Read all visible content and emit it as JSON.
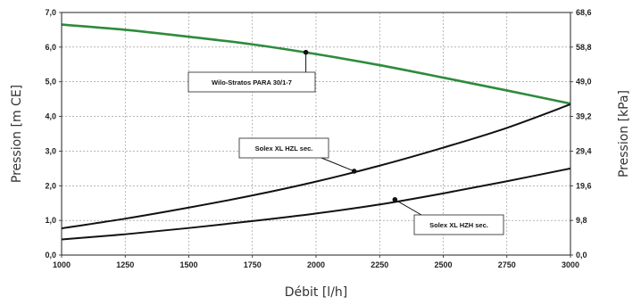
{
  "chart_data": {
    "type": "line",
    "xlabel": "Débit [l/h]",
    "ylabel": "Pression [m CE]",
    "y2label": "Pression [kPa]",
    "xlim": [
      1000,
      3000
    ],
    "ylim": [
      0,
      7
    ],
    "y2lim": [
      0,
      68.6
    ],
    "grid": true,
    "x_ticks": [
      "1000",
      "1250",
      "1500",
      "1750",
      "2000",
      "2250",
      "2500",
      "2750",
      "3000"
    ],
    "y_ticks": [
      "0,0",
      "1,0",
      "2,0",
      "3,0",
      "4,0",
      "5,0",
      "6,0",
      "7,0"
    ],
    "y2_ticks": [
      "0,0",
      "9,8",
      "19,6",
      "29,4",
      "39,2",
      "49,0",
      "58,8",
      "68,6"
    ],
    "series": [
      {
        "name": "Wilo-Stratos PARA 30/1-7",
        "color": "#2e8b3c",
        "x": [
          1000,
          1250,
          1500,
          1750,
          2000,
          2250,
          2500,
          2750,
          3000
        ],
        "y": [
          6.65,
          6.5,
          6.3,
          6.08,
          5.8,
          5.48,
          5.12,
          4.75,
          4.37
        ],
        "marker": {
          "x": 1960,
          "y": 5.85
        }
      },
      {
        "name": "Solex XL HZL sec.",
        "color": "#111111",
        "x": [
          1000,
          1250,
          1500,
          1750,
          2000,
          2250,
          2500,
          2750,
          3000
        ],
        "y": [
          0.77,
          1.05,
          1.37,
          1.72,
          2.12,
          2.58,
          3.1,
          3.67,
          4.35
        ],
        "marker": {
          "x": 2150,
          "y": 2.42
        }
      },
      {
        "name": "Solex XL HZH sec.",
        "color": "#111111",
        "x": [
          1000,
          1250,
          1500,
          1750,
          2000,
          2250,
          2500,
          2750,
          3000
        ],
        "y": [
          0.45,
          0.6,
          0.78,
          0.98,
          1.2,
          1.46,
          1.78,
          2.13,
          2.5
        ],
        "marker": {
          "x": 2310,
          "y": 1.6
        }
      }
    ]
  }
}
